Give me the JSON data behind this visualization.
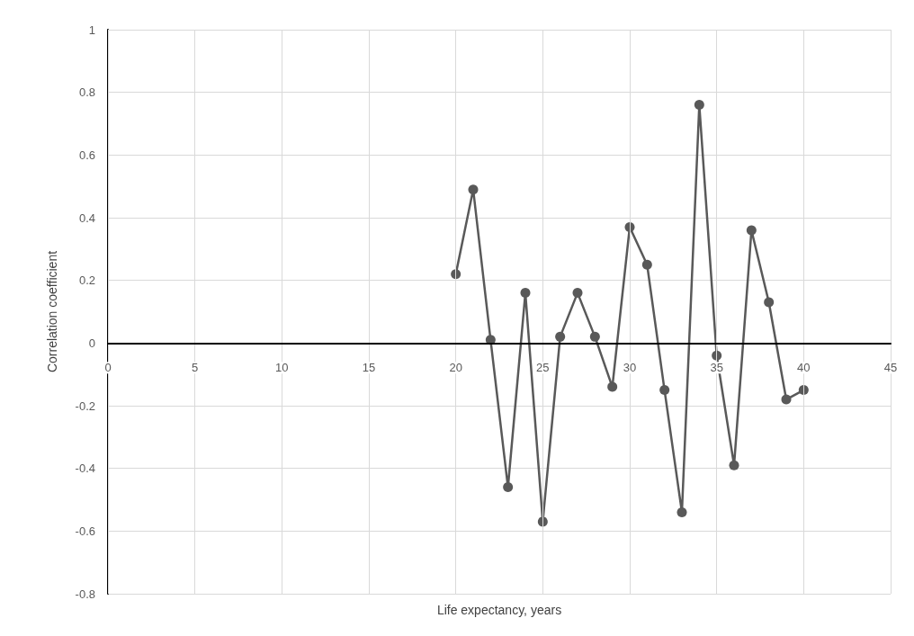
{
  "chart_data": {
    "type": "line",
    "xlabel": "Life expectancy, years",
    "ylabel": "Correlation coefficient",
    "x": [
      20,
      21,
      22,
      23,
      24,
      25,
      26,
      27,
      28,
      29,
      30,
      31,
      32,
      33,
      34,
      35,
      36,
      37,
      38,
      39,
      40
    ],
    "series": [
      {
        "color": "#595959",
        "values": [
          0.22,
          0.49,
          0.01,
          -0.46,
          0.16,
          -0.57,
          0.02,
          0.16,
          0.02,
          -0.14,
          0.37,
          0.25,
          -0.15,
          -0.54,
          0.76,
          -0.04,
          -0.39,
          0.36,
          0.13,
          -0.18,
          -0.15
        ]
      }
    ],
    "xlim": [
      0,
      45
    ],
    "xticks": [
      0,
      5,
      10,
      15,
      20,
      25,
      30,
      35,
      40,
      45
    ],
    "ylim": [
      -0.8,
      1
    ],
    "yticks": [
      -0.8,
      -0.6,
      -0.4,
      -0.2,
      0,
      0.2,
      0.4,
      0.6,
      0.8,
      1
    ],
    "grid": true,
    "marker": "circle",
    "line_style": "solid"
  }
}
